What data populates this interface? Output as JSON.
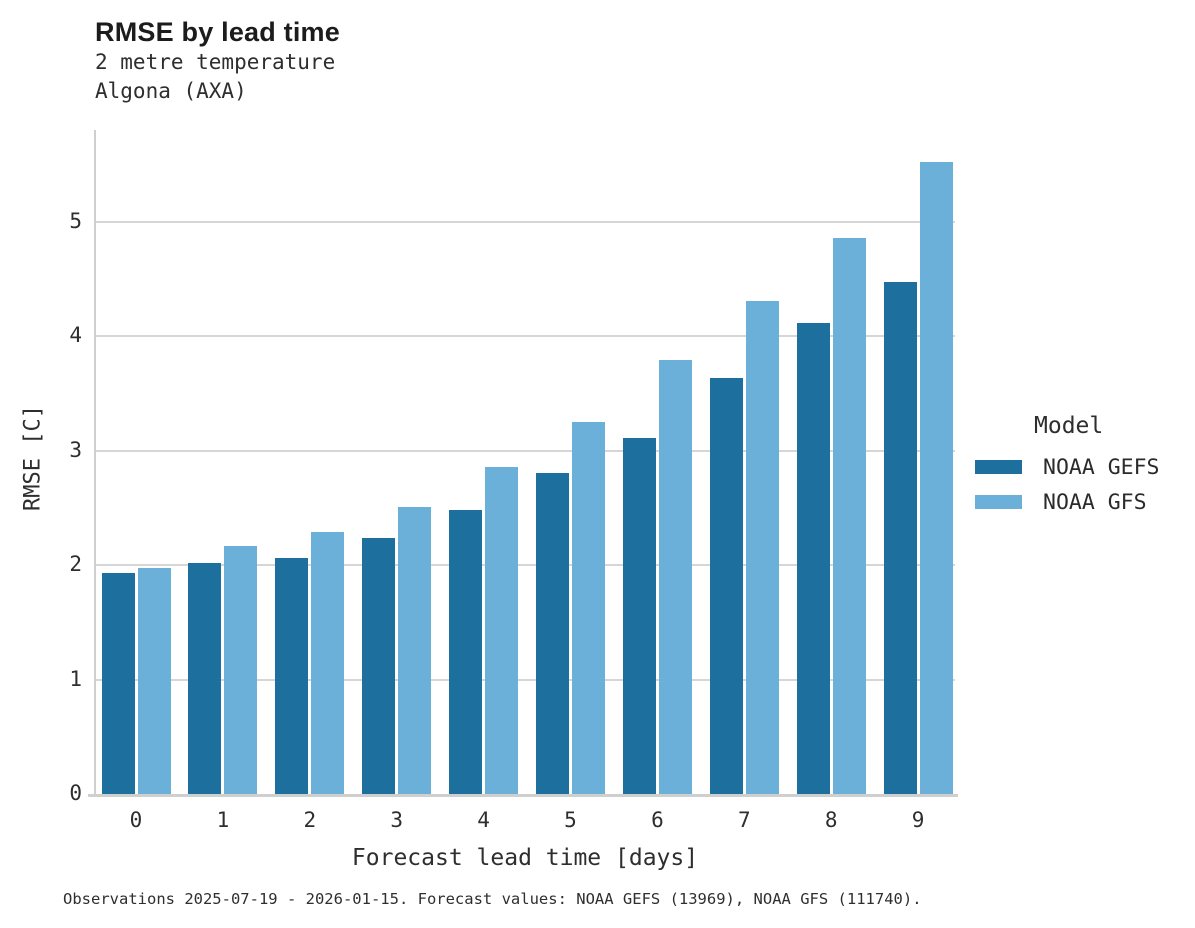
{
  "chart_data": {
    "type": "bar",
    "title": "RMSE by lead time",
    "subtitle": [
      "2 metre temperature",
      "Algona (AXA)"
    ],
    "xlabel": "Forecast lead time [days]",
    "ylabel": "RMSE [C]",
    "legend_title": "Model",
    "legend_position": "right",
    "grid": "horizontal",
    "categories": [
      "0",
      "1",
      "2",
      "3",
      "4",
      "5",
      "6",
      "7",
      "8",
      "9"
    ],
    "yticks": [
      "0",
      "1",
      "2",
      "3",
      "4",
      "5"
    ],
    "ylim": [
      0,
      5.8
    ],
    "series": [
      {
        "name": "NOAA GEFS",
        "color": "#1d6f9e",
        "values": [
          1.93,
          2.02,
          2.06,
          2.24,
          2.48,
          2.8,
          3.11,
          3.63,
          4.11,
          4.47
        ]
      },
      {
        "name": "NOAA GFS",
        "color": "#6bb0d8",
        "values": [
          1.97,
          2.17,
          2.29,
          2.51,
          2.86,
          3.25,
          3.79,
          4.31,
          4.86,
          5.52
        ]
      }
    ],
    "caption": "Observations 2025-07-19 - 2026-01-15. Forecast values: NOAA GEFS (13969), NOAA GFS (111740)."
  }
}
